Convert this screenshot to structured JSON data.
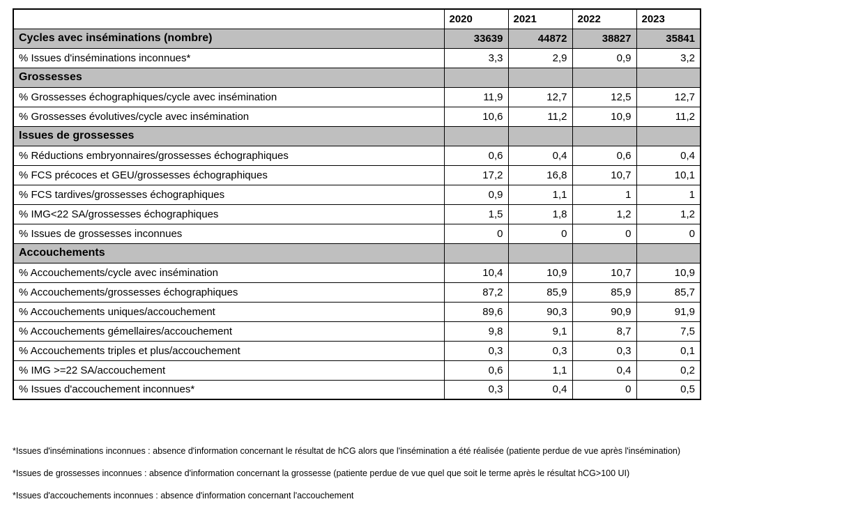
{
  "colors": {
    "section_bg": "#bfbfbf",
    "border": "#000000",
    "page_bg": "#ffffff"
  },
  "table": {
    "columns": [
      "",
      "2020",
      "2021",
      "2022",
      "2023"
    ],
    "rows": [
      {
        "style": "highlight",
        "label": "Cycles avec inséminations (nombre)",
        "values": [
          "33639",
          "44872",
          "38827",
          "35841"
        ]
      },
      {
        "style": "normal",
        "label": "% Issues d'inséminations inconnues*",
        "values": [
          "3,3",
          "2,9",
          "0,9",
          "3,2"
        ]
      },
      {
        "style": "section",
        "label": "Grossesses",
        "values": [
          "",
          "",
          "",
          ""
        ]
      },
      {
        "style": "normal",
        "label": "% Grossesses échographiques/cycle avec insémination",
        "values": [
          "11,9",
          "12,7",
          "12,5",
          "12,7"
        ]
      },
      {
        "style": "normal",
        "label": "% Grossesses évolutives/cycle avec insémination",
        "values": [
          "10,6",
          "11,2",
          "10,9",
          "11,2"
        ]
      },
      {
        "style": "section",
        "label": "Issues de grossesses",
        "values": [
          "",
          "",
          "",
          ""
        ]
      },
      {
        "style": "normal",
        "label": "% Réductions embryonnaires/grossesses échographiques",
        "values": [
          "0,6",
          "0,4",
          "0,6",
          "0,4"
        ]
      },
      {
        "style": "normal",
        "label": "% FCS précoces et GEU/grossesses échographiques",
        "values": [
          "17,2",
          "16,8",
          "10,7",
          "10,1"
        ]
      },
      {
        "style": "normal",
        "label": "% FCS tardives/grossesses échographiques",
        "values": [
          "0,9",
          "1,1",
          "1",
          "1"
        ]
      },
      {
        "style": "normal",
        "label": "% IMG<22 SA/grossesses échographiques",
        "values": [
          "1,5",
          "1,8",
          "1,2",
          "1,2"
        ]
      },
      {
        "style": "normal",
        "label": "% Issues de grossesses inconnues",
        "values": [
          "0",
          "0",
          "0",
          "0"
        ]
      },
      {
        "style": "section",
        "label": "Accouchements",
        "values": [
          "",
          "",
          "",
          ""
        ]
      },
      {
        "style": "normal",
        "label": "% Accouchements/cycle avec insémination",
        "values": [
          "10,4",
          "10,9",
          "10,7",
          "10,9"
        ]
      },
      {
        "style": "normal",
        "label": "% Accouchements/grossesses échographiques",
        "values": [
          "87,2",
          "85,9",
          "85,9",
          "85,7"
        ]
      },
      {
        "style": "normal",
        "label": "% Accouchements uniques/accouchement",
        "values": [
          "89,6",
          "90,3",
          "90,9",
          "91,9"
        ]
      },
      {
        "style": "normal",
        "label": "% Accouchements gémellaires/accouchement",
        "values": [
          "9,8",
          "9,1",
          "8,7",
          "7,5"
        ]
      },
      {
        "style": "normal",
        "label": "% Accouchements triples et plus/accouchement",
        "values": [
          "0,3",
          "0,3",
          "0,3",
          "0,1"
        ]
      },
      {
        "style": "normal",
        "label": "% IMG >=22 SA/accouchement",
        "values": [
          "0,6",
          "1,1",
          "0,4",
          "0,2"
        ]
      },
      {
        "style": "normal",
        "label": "% Issues d'accouchement inconnues*",
        "values": [
          "0,3",
          "0,4",
          "0",
          "0,5"
        ]
      }
    ]
  },
  "footnotes": [
    "*Issues d'inséminations inconnues : absence d'information concernant le résultat de hCG alors que l'insémination a été réalisée (patiente perdue de vue après l'insémination)",
    "*Issues de grossesses inconnues : absence d'information concernant la grossesse (patiente perdue de vue quel que soit le terme après le résultat hCG>100 UI)",
    "*Issues d'accouchements inconnues : absence d'information concernant l'accouchement"
  ]
}
